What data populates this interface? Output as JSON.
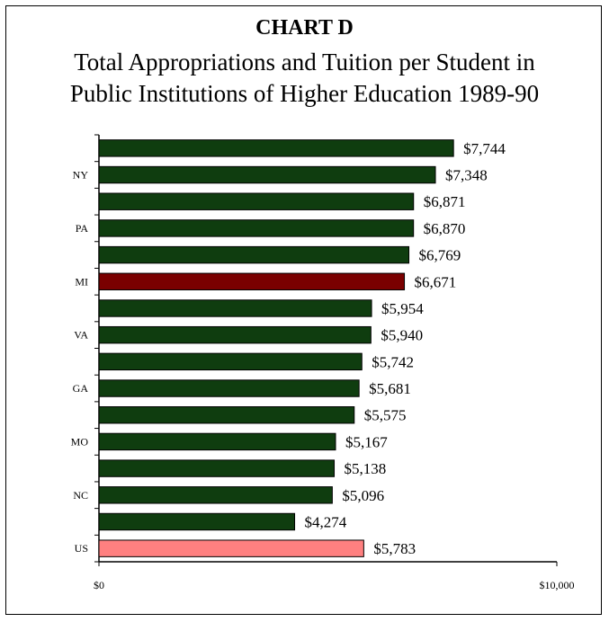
{
  "header": {
    "title": "CHART D",
    "subtitle_line1": "Total Appropriations and Tuition per Student in",
    "subtitle_line2": "Public Institutions of Higher Education 1989-90"
  },
  "chart_data": {
    "type": "bar",
    "orientation": "horizontal",
    "title": "CHART D",
    "subtitle": "Total Appropriations and Tuition per Student in Public Institutions of Higher Education 1989-90",
    "categories": [
      "",
      "NY",
      "",
      "PA",
      "",
      "MI",
      "",
      "VA",
      "",
      "GA",
      "",
      "MO",
      "",
      "NC",
      "",
      "US"
    ],
    "values": [
      7744,
      7348,
      6871,
      6870,
      6769,
      6671,
      5954,
      5940,
      5742,
      5681,
      5575,
      5167,
      5138,
      5096,
      4274,
      5783
    ],
    "value_labels": [
      "$7,744",
      "$7,348",
      "$6,871",
      "$6,870",
      "$6,769",
      "$6,671",
      "$5,954",
      "$5,940",
      "$5,742",
      "$5,681",
      "$5,575",
      "$5,167",
      "$5,138",
      "$5,096",
      "$4,274",
      "$5,783"
    ],
    "bar_colors": [
      "#0f3d0f",
      "#0f3d0f",
      "#0f3d0f",
      "#0f3d0f",
      "#0f3d0f",
      "#7a0000",
      "#0f3d0f",
      "#0f3d0f",
      "#0f3d0f",
      "#0f3d0f",
      "#0f3d0f",
      "#0f3d0f",
      "#0f3d0f",
      "#0f3d0f",
      "#0f3d0f",
      "#ff8080"
    ],
    "xlim": [
      0,
      10000
    ],
    "x_ticks": [
      0,
      10000
    ],
    "x_tick_labels": [
      "$0",
      "$10,000"
    ],
    "xlabel": "",
    "ylabel": "",
    "grid": false,
    "legend": "none"
  }
}
